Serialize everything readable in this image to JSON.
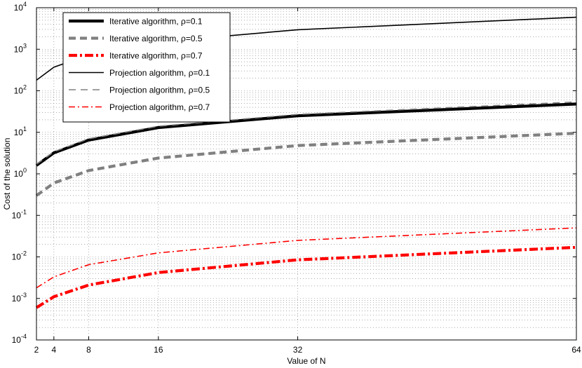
{
  "chart_data": {
    "type": "line",
    "title": "",
    "xlabel": "Value of N",
    "ylabel": "Cost of the solution",
    "xscale": "linear",
    "yscale": "log",
    "xlim": [
      2,
      64
    ],
    "ylim": [
      0.0001,
      10000
    ],
    "xticks": [
      2,
      4,
      8,
      16,
      32,
      64
    ],
    "xtick_labels": [
      "2",
      "4",
      "8",
      "16",
      "32",
      "64"
    ],
    "yticks": [
      0.0001,
      0.001,
      0.01,
      0.1,
      1,
      10,
      100,
      1000,
      10000
    ],
    "ytick_mantissa": [
      "10",
      "10",
      "10",
      "10",
      "10",
      "10",
      "10",
      "10",
      "10"
    ],
    "ytick_exponents": [
      "-4",
      "-3",
      "-2",
      "-1",
      "0",
      "1",
      "2",
      "3",
      "4"
    ],
    "grid": true,
    "legend_position": "top-left",
    "x": [
      2,
      4,
      8,
      16,
      32,
      64
    ],
    "series": [
      {
        "name": "Iterative algorithm, ρ=0.1",
        "values": [
          1.6,
          3.2,
          6.5,
          13,
          25,
          48
        ],
        "color": "#000000",
        "dash": "solid",
        "weight": "thick"
      },
      {
        "name": "Iterative algorithm, ρ=0.5",
        "values": [
          0.3,
          0.6,
          1.2,
          2.4,
          4.8,
          9.5
        ],
        "color": "#808080",
        "dash": "dashed",
        "weight": "thick"
      },
      {
        "name": "Iterative algorithm, ρ=0.7",
        "values": [
          0.0006,
          0.0011,
          0.0021,
          0.0042,
          0.0085,
          0.017
        ],
        "color": "#ff0000",
        "dash": "dashdot",
        "weight": "thick"
      },
      {
        "name": "Projection algorithm, ρ=0.1",
        "values": [
          180,
          370,
          740,
          1500,
          2950,
          5900
        ],
        "color": "#000000",
        "dash": "solid",
        "weight": "thin"
      },
      {
        "name": "Projection algorithm, ρ=0.5",
        "values": [
          1.7,
          3.4,
          7,
          14,
          27,
          54
        ],
        "color": "#808080",
        "dash": "dashed",
        "weight": "thin"
      },
      {
        "name": "Projection algorithm, ρ=0.7",
        "values": [
          0.0018,
          0.0033,
          0.0065,
          0.0125,
          0.025,
          0.05
        ],
        "color": "#ff0000",
        "dash": "dashdot",
        "weight": "thin"
      }
    ]
  }
}
